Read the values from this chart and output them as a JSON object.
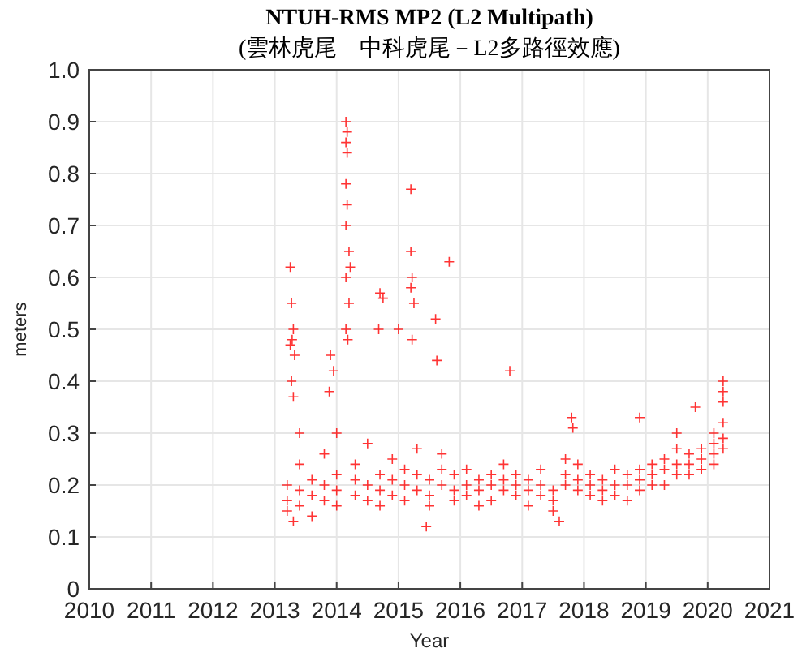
{
  "chart_data": {
    "type": "scatter",
    "title": "NTUH-RMS MP2 (L2 Multipath)",
    "subtitle": "(雲林虎尾　中科虎尾－L2多路徑效應)",
    "xlabel": "Year",
    "ylabel": "meters",
    "xlim": [
      2010,
      2021
    ],
    "xticks": [
      2010,
      2011,
      2012,
      2013,
      2014,
      2015,
      2016,
      2017,
      2018,
      2019,
      2020,
      2021
    ],
    "ylim": [
      0,
      1
    ],
    "yticks": [
      0,
      0.1,
      0.2,
      0.3,
      0.4,
      0.5,
      0.6,
      0.7,
      0.8,
      0.9,
      {
        "value": 1,
        "label": "1.0"
      }
    ],
    "grid": true,
    "marker": "cross",
    "series": [
      {
        "color": "#ff0000",
        "x": [
          2013.2,
          2013.2,
          2013.2,
          2013.4,
          2013.4,
          2013.4,
          2013.4,
          2013.6,
          2013.6,
          2013.6,
          2013.8,
          2013.8,
          2013.8,
          2014.0,
          2014.0,
          2014.0,
          2014.0,
          2014.3,
          2014.3,
          2014.3,
          2014.5,
          2014.5,
          2014.5,
          2014.7,
          2014.7,
          2014.7,
          2014.9,
          2014.9,
          2014.9,
          2015.1,
          2015.1,
          2015.1,
          2015.3,
          2015.3,
          2015.3,
          2015.5,
          2015.5,
          2015.5,
          2015.7,
          2015.7,
          2015.7,
          2015.9,
          2015.9,
          2015.9,
          2016.1,
          2016.1,
          2016.1,
          2016.3,
          2016.3,
          2016.3,
          2016.5,
          2016.5,
          2016.5,
          2016.7,
          2016.7,
          2016.7,
          2016.9,
          2016.9,
          2016.9,
          2017.1,
          2017.1,
          2017.1,
          2017.3,
          2017.3,
          2017.3,
          2017.5,
          2017.5,
          2017.5,
          2017.7,
          2017.7,
          2017.7,
          2017.9,
          2017.9,
          2017.9,
          2018.1,
          2018.1,
          2018.1,
          2018.3,
          2018.3,
          2018.3,
          2018.5,
          2018.5,
          2018.5,
          2018.7,
          2018.7,
          2018.7,
          2018.9,
          2018.9,
          2018.9,
          2019.1,
          2019.1,
          2019.1,
          2019.3,
          2019.3,
          2019.3,
          2019.5,
          2019.5,
          2019.5,
          2019.7,
          2019.7,
          2019.7,
          2019.9,
          2019.9,
          2019.9,
          2020.1,
          2020.1,
          2020.1,
          2020.1,
          2020.25,
          2020.25,
          2020.25,
          2020.25,
          2020.25,
          2020.25,
          2014.15,
          2014.17,
          2014.15,
          2014.17,
          2014.15,
          2014.17,
          2014.15,
          2014.2,
          2014.22,
          2014.15,
          2014.2,
          2014.15,
          2014.18,
          2013.25,
          2013.27,
          2013.3,
          2013.28,
          2013.25,
          2013.32,
          2013.27,
          2013.3,
          2015.2,
          2015.2,
          2015.22,
          2015.2,
          2015.25,
          2015.22,
          2015.82,
          2014.7,
          2014.75,
          2014.68,
          2013.9,
          2013.95,
          2013.88,
          2016.8,
          2015.0,
          2015.6,
          2015.62,
          2015.45,
          2013.3,
          2017.6,
          2017.8,
          2017.82,
          2018.9,
          2019.8,
          2019.5
        ],
        "values": [
          0.17,
          0.2,
          0.15,
          0.19,
          0.16,
          0.24,
          0.3,
          0.18,
          0.21,
          0.14,
          0.2,
          0.17,
          0.26,
          0.19,
          0.22,
          0.16,
          0.3,
          0.18,
          0.21,
          0.24,
          0.17,
          0.2,
          0.28,
          0.19,
          0.22,
          0.16,
          0.21,
          0.18,
          0.25,
          0.2,
          0.23,
          0.17,
          0.19,
          0.22,
          0.27,
          0.18,
          0.21,
          0.16,
          0.2,
          0.23,
          0.26,
          0.19,
          0.17,
          0.22,
          0.2,
          0.18,
          0.23,
          0.19,
          0.21,
          0.16,
          0.2,
          0.22,
          0.17,
          0.19,
          0.21,
          0.24,
          0.18,
          0.2,
          0.22,
          0.19,
          0.21,
          0.16,
          0.18,
          0.2,
          0.23,
          0.17,
          0.19,
          0.15,
          0.2,
          0.22,
          0.25,
          0.21,
          0.19,
          0.24,
          0.2,
          0.22,
          0.18,
          0.19,
          0.21,
          0.17,
          0.18,
          0.2,
          0.23,
          0.2,
          0.22,
          0.17,
          0.21,
          0.23,
          0.19,
          0.22,
          0.24,
          0.2,
          0.23,
          0.25,
          0.2,
          0.24,
          0.22,
          0.27,
          0.24,
          0.26,
          0.22,
          0.25,
          0.27,
          0.23,
          0.26,
          0.28,
          0.24,
          0.3,
          0.29,
          0.32,
          0.36,
          0.38,
          0.4,
          0.27,
          0.9,
          0.88,
          0.86,
          0.84,
          0.78,
          0.74,
          0.7,
          0.65,
          0.62,
          0.6,
          0.55,
          0.5,
          0.48,
          0.62,
          0.55,
          0.5,
          0.48,
          0.47,
          0.45,
          0.4,
          0.37,
          0.77,
          0.65,
          0.6,
          0.58,
          0.55,
          0.48,
          0.63,
          0.57,
          0.56,
          0.5,
          0.45,
          0.42,
          0.38,
          0.42,
          0.5,
          0.52,
          0.44,
          0.12,
          0.13,
          0.13,
          0.33,
          0.31,
          0.33,
          0.35,
          0.3
        ]
      }
    ]
  }
}
